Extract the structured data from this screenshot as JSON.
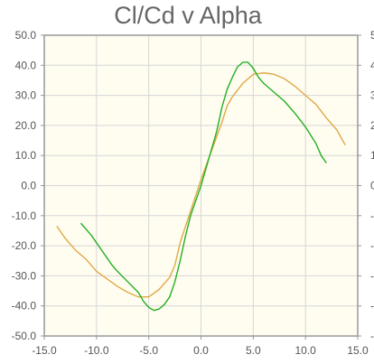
{
  "chart_data": {
    "type": "line",
    "title": "Cl/Cd v Alpha",
    "xlabel": "",
    "ylabel": "",
    "xlim": [
      -15,
      15
    ],
    "ylim": [
      -50,
      50
    ],
    "x_ticks": [
      "-15.0",
      "-10.0",
      "-5.0",
      "0.0",
      "5.0",
      "10.0",
      "15.0"
    ],
    "y_ticks": [
      "50.0",
      "40.0",
      "30.0",
      "20.0",
      "10.0",
      "0.0",
      "-10.0",
      "-20.0",
      "-30.0",
      "-40.0",
      "-50.0"
    ],
    "grid": true,
    "legend": "none",
    "colors": {
      "plot_background": "#fffdf0",
      "grid": "#d6d6d6",
      "frame": "#999999"
    },
    "series": [
      {
        "color": "#e0a848",
        "points": [
          [
            -13.8,
            -13.5
          ],
          [
            -13.0,
            -17.5
          ],
          [
            -12.0,
            -21.5
          ],
          [
            -11.0,
            -24.5
          ],
          [
            -10.0,
            -28.5
          ],
          [
            -9.0,
            -31.0
          ],
          [
            -8.0,
            -33.5
          ],
          [
            -7.0,
            -35.5
          ],
          [
            -6.0,
            -37.0
          ],
          [
            -5.0,
            -37.0
          ],
          [
            -4.0,
            -34.5
          ],
          [
            -3.0,
            -30.5
          ],
          [
            -2.5,
            -26.5
          ],
          [
            -2.0,
            -19.0
          ],
          [
            -1.0,
            -8.5
          ],
          [
            0.0,
            2.0
          ],
          [
            1.0,
            11.5
          ],
          [
            2.0,
            21.0
          ],
          [
            2.5,
            26.5
          ],
          [
            3.0,
            29.5
          ],
          [
            4.0,
            34.0
          ],
          [
            5.0,
            37.0
          ],
          [
            6.0,
            37.5
          ],
          [
            7.0,
            37.0
          ],
          [
            8.0,
            35.5
          ],
          [
            9.0,
            33.0
          ],
          [
            10.0,
            30.0
          ],
          [
            11.0,
            27.0
          ],
          [
            12.0,
            22.5
          ],
          [
            13.0,
            18.5
          ],
          [
            13.8,
            13.5
          ]
        ]
      },
      {
        "color": "#22b022",
        "points": [
          [
            -11.5,
            -12.5
          ],
          [
            -10.5,
            -16.5
          ],
          [
            -9.5,
            -21.5
          ],
          [
            -9.0,
            -24.0
          ],
          [
            -8.5,
            -26.5
          ],
          [
            -8.0,
            -28.5
          ],
          [
            -7.0,
            -32.0
          ],
          [
            -6.0,
            -35.5
          ],
          [
            -5.5,
            -38.5
          ],
          [
            -5.0,
            -40.5
          ],
          [
            -4.5,
            -41.5
          ],
          [
            -4.0,
            -41.0
          ],
          [
            -3.5,
            -39.5
          ],
          [
            -3.0,
            -37.0
          ],
          [
            -2.5,
            -32.0
          ],
          [
            -2.0,
            -25.0
          ],
          [
            -1.5,
            -17.0
          ],
          [
            -1.0,
            -10.0
          ],
          [
            0.0,
            0.0
          ],
          [
            1.0,
            12.0
          ],
          [
            1.5,
            18.0
          ],
          [
            2.0,
            26.0
          ],
          [
            2.5,
            32.0
          ],
          [
            3.0,
            36.0
          ],
          [
            3.5,
            39.5
          ],
          [
            4.0,
            41.0
          ],
          [
            4.5,
            41.0
          ],
          [
            5.0,
            39.0
          ],
          [
            5.5,
            36.0
          ],
          [
            6.0,
            34.0
          ],
          [
            7.0,
            31.0
          ],
          [
            8.0,
            28.0
          ],
          [
            9.0,
            24.0
          ],
          [
            10.0,
            19.5
          ],
          [
            11.0,
            14.0
          ],
          [
            11.5,
            10.0
          ],
          [
            12.0,
            7.5
          ]
        ]
      }
    ]
  }
}
